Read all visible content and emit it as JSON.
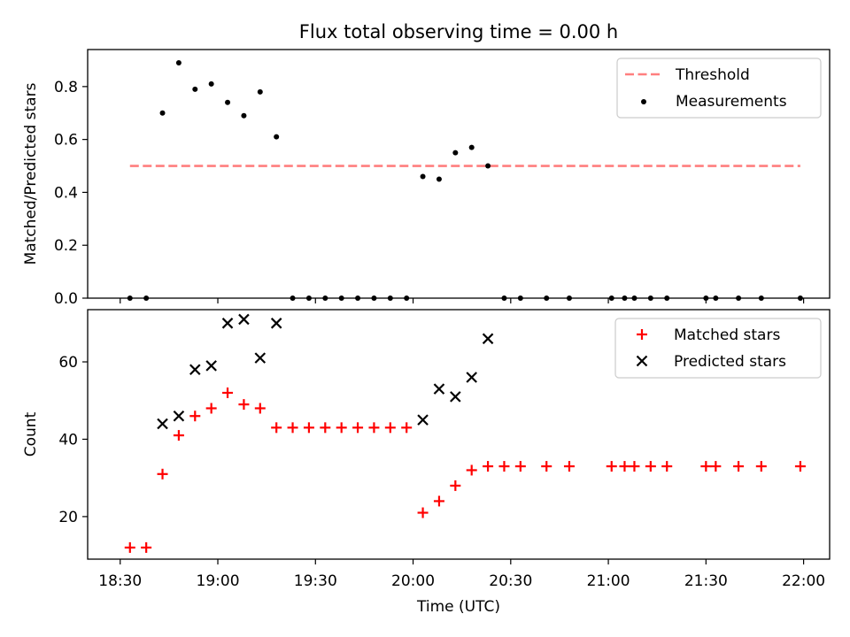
{
  "figure": {
    "title": "Flux total observing time = 0.00 h"
  },
  "chart_data": [
    {
      "type": "scatter",
      "xlabel": "",
      "ylabel": "Matched/Predicted stars",
      "xlim": [
        "18:20",
        "22:08"
      ],
      "ylim": [
        0,
        0.94
      ],
      "x_is_time": true,
      "x_ticks": [
        "18:30",
        "19:00",
        "19:30",
        "20:00",
        "20:30",
        "21:00",
        "21:30",
        "22:00"
      ],
      "y_ticks": [
        "0.0",
        "0.2",
        "0.4",
        "0.6",
        "0.8"
      ],
      "y_tick_values": [
        0,
        0.2,
        0.4,
        0.6,
        0.8
      ],
      "legend_position": "top-right",
      "series": [
        {
          "name": "Threshold",
          "kind": "dashed-line",
          "color": "#ff7f7f",
          "x": [
            "18:33",
            "21:59"
          ],
          "y": [
            0.5,
            0.5
          ]
        },
        {
          "name": "Measurements",
          "kind": "dot",
          "color": "#000000",
          "x": [
            "18:33",
            "18:38",
            "18:43",
            "18:48",
            "18:53",
            "18:58",
            "19:03",
            "19:08",
            "19:13",
            "19:18",
            "19:23",
            "19:28",
            "19:33",
            "19:38",
            "19:43",
            "19:48",
            "19:53",
            "19:58",
            "20:03",
            "20:08",
            "20:13",
            "20:18",
            "20:23",
            "20:28",
            "20:33",
            "20:41",
            "20:48",
            "21:01",
            "21:05",
            "21:08",
            "21:13",
            "21:18",
            "21:30",
            "21:33",
            "21:40",
            "21:47",
            "21:59"
          ],
          "y": [
            0,
            0,
            0.7,
            0.89,
            0.79,
            0.81,
            0.74,
            0.69,
            0.78,
            0.61,
            0,
            0,
            0,
            0,
            0,
            0,
            0,
            0,
            0.46,
            0.45,
            0.55,
            0.57,
            0.5,
            0,
            0,
            0,
            0,
            0,
            0,
            0,
            0,
            0,
            0,
            0,
            0,
            0,
            0
          ]
        }
      ]
    },
    {
      "type": "scatter",
      "xlabel": "Time (UTC)",
      "ylabel": "Count",
      "xlim": [
        "18:20",
        "22:08"
      ],
      "ylim": [
        9,
        73.5
      ],
      "x_is_time": true,
      "x_ticks": [
        "18:30",
        "19:00",
        "19:30",
        "20:00",
        "20:30",
        "21:00",
        "21:30",
        "22:00"
      ],
      "y_ticks": [
        "20",
        "40",
        "60"
      ],
      "y_tick_values": [
        20,
        40,
        60
      ],
      "legend_position": "top-right",
      "series": [
        {
          "name": "Matched stars",
          "kind": "plus",
          "color": "#ff0000",
          "x": [
            "18:33",
            "18:38",
            "18:43",
            "18:48",
            "18:53",
            "18:58",
            "19:03",
            "19:08",
            "19:13",
            "19:18",
            "19:23",
            "19:28",
            "19:33",
            "19:38",
            "19:43",
            "19:48",
            "19:53",
            "19:58",
            "20:03",
            "20:08",
            "20:13",
            "20:18",
            "20:23",
            "20:28",
            "20:33",
            "20:41",
            "20:48",
            "21:01",
            "21:05",
            "21:08",
            "21:13",
            "21:18",
            "21:30",
            "21:33",
            "21:40",
            "21:47",
            "21:59"
          ],
          "y": [
            12,
            12,
            31,
            41,
            46,
            48,
            52,
            49,
            48,
            43,
            43,
            43,
            43,
            43,
            43,
            43,
            43,
            43,
            21,
            24,
            28,
            32,
            33,
            33,
            33,
            33,
            33,
            33,
            33,
            33,
            33,
            33,
            33,
            33,
            33,
            33,
            33
          ]
        },
        {
          "name": "Predicted stars",
          "kind": "cross",
          "color": "#000000",
          "x": [
            "18:43",
            "18:48",
            "18:53",
            "18:58",
            "19:03",
            "19:08",
            "19:13",
            "19:18",
            "20:03",
            "20:08",
            "20:13",
            "20:18",
            "20:23"
          ],
          "y": [
            44,
            46,
            58,
            59,
            70,
            71,
            61,
            70,
            45,
            53,
            51,
            56,
            66
          ]
        }
      ]
    }
  ]
}
